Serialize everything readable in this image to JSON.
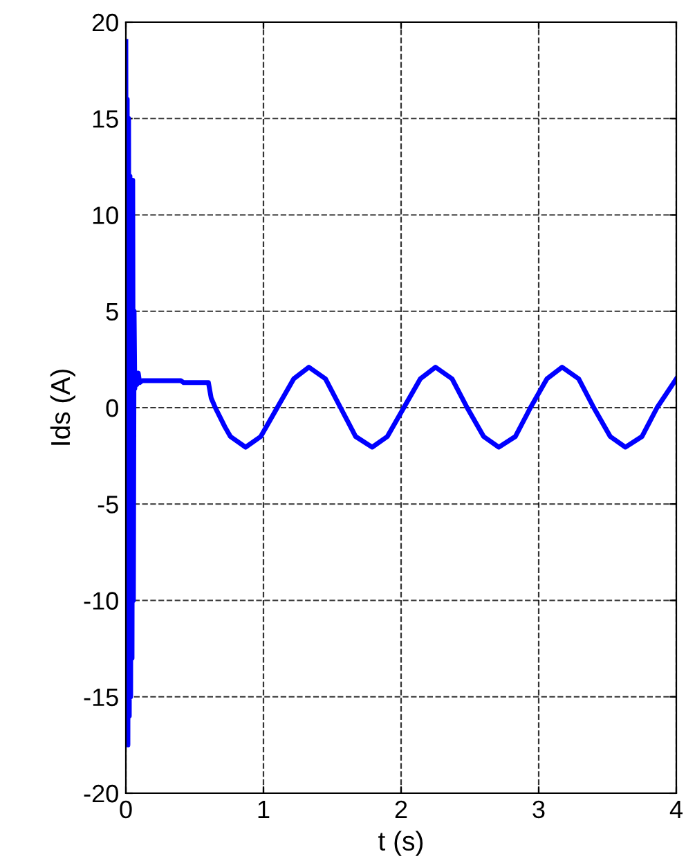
{
  "chart_data": {
    "type": "line",
    "xlabel": "t (s)",
    "ylabel": "Ids (A)",
    "xlim": [
      0,
      4
    ],
    "ylim": [
      -20,
      20
    ],
    "xticks": [
      0,
      1,
      2,
      3,
      4
    ],
    "yticks": [
      -20,
      -15,
      -10,
      -5,
      0,
      5,
      10,
      15,
      20
    ],
    "grid": true,
    "line_style": "dashed",
    "series": [
      {
        "color": "#0000ff",
        "line_style": "solid",
        "x": [
          0,
          0.005,
          0.01,
          0.015,
          0.02,
          0.025,
          0.03,
          0.035,
          0.04,
          0.045,
          0.05,
          0.055,
          0.06,
          0.065,
          0.07,
          0.08,
          0.09,
          0.1,
          0.12,
          0.4,
          0.42,
          0.6,
          0.62,
          0.65,
          0.72,
          0.76,
          0.87,
          0.98,
          1.1,
          1.22,
          1.33,
          1.45,
          1.56,
          1.67,
          1.79,
          1.9,
          2.02,
          2.14,
          2.25,
          2.37,
          2.48,
          2.6,
          2.71,
          2.83,
          2.94,
          3.06,
          3.17,
          3.29,
          3.4,
          3.52,
          3.63,
          3.75,
          3.86,
          4.0
        ],
        "values": [
          19,
          -17,
          16,
          -17.5,
          15,
          -16,
          12,
          -15,
          11.5,
          -13,
          11.8,
          -10,
          5,
          1,
          1.5,
          1.2,
          1.8,
          1.3,
          1.4,
          1.4,
          1.3,
          1.3,
          0.5,
          0,
          -1,
          -1.5,
          -2.05,
          -1.5,
          0,
          1.5,
          2.1,
          1.5,
          0,
          -1.5,
          -2.05,
          -1.5,
          0,
          1.5,
          2.1,
          1.5,
          0,
          -1.5,
          -2.05,
          -1.5,
          0,
          1.5,
          2.1,
          1.5,
          0,
          -1.5,
          -2.05,
          -1.5,
          0,
          1.5
        ]
      }
    ]
  }
}
